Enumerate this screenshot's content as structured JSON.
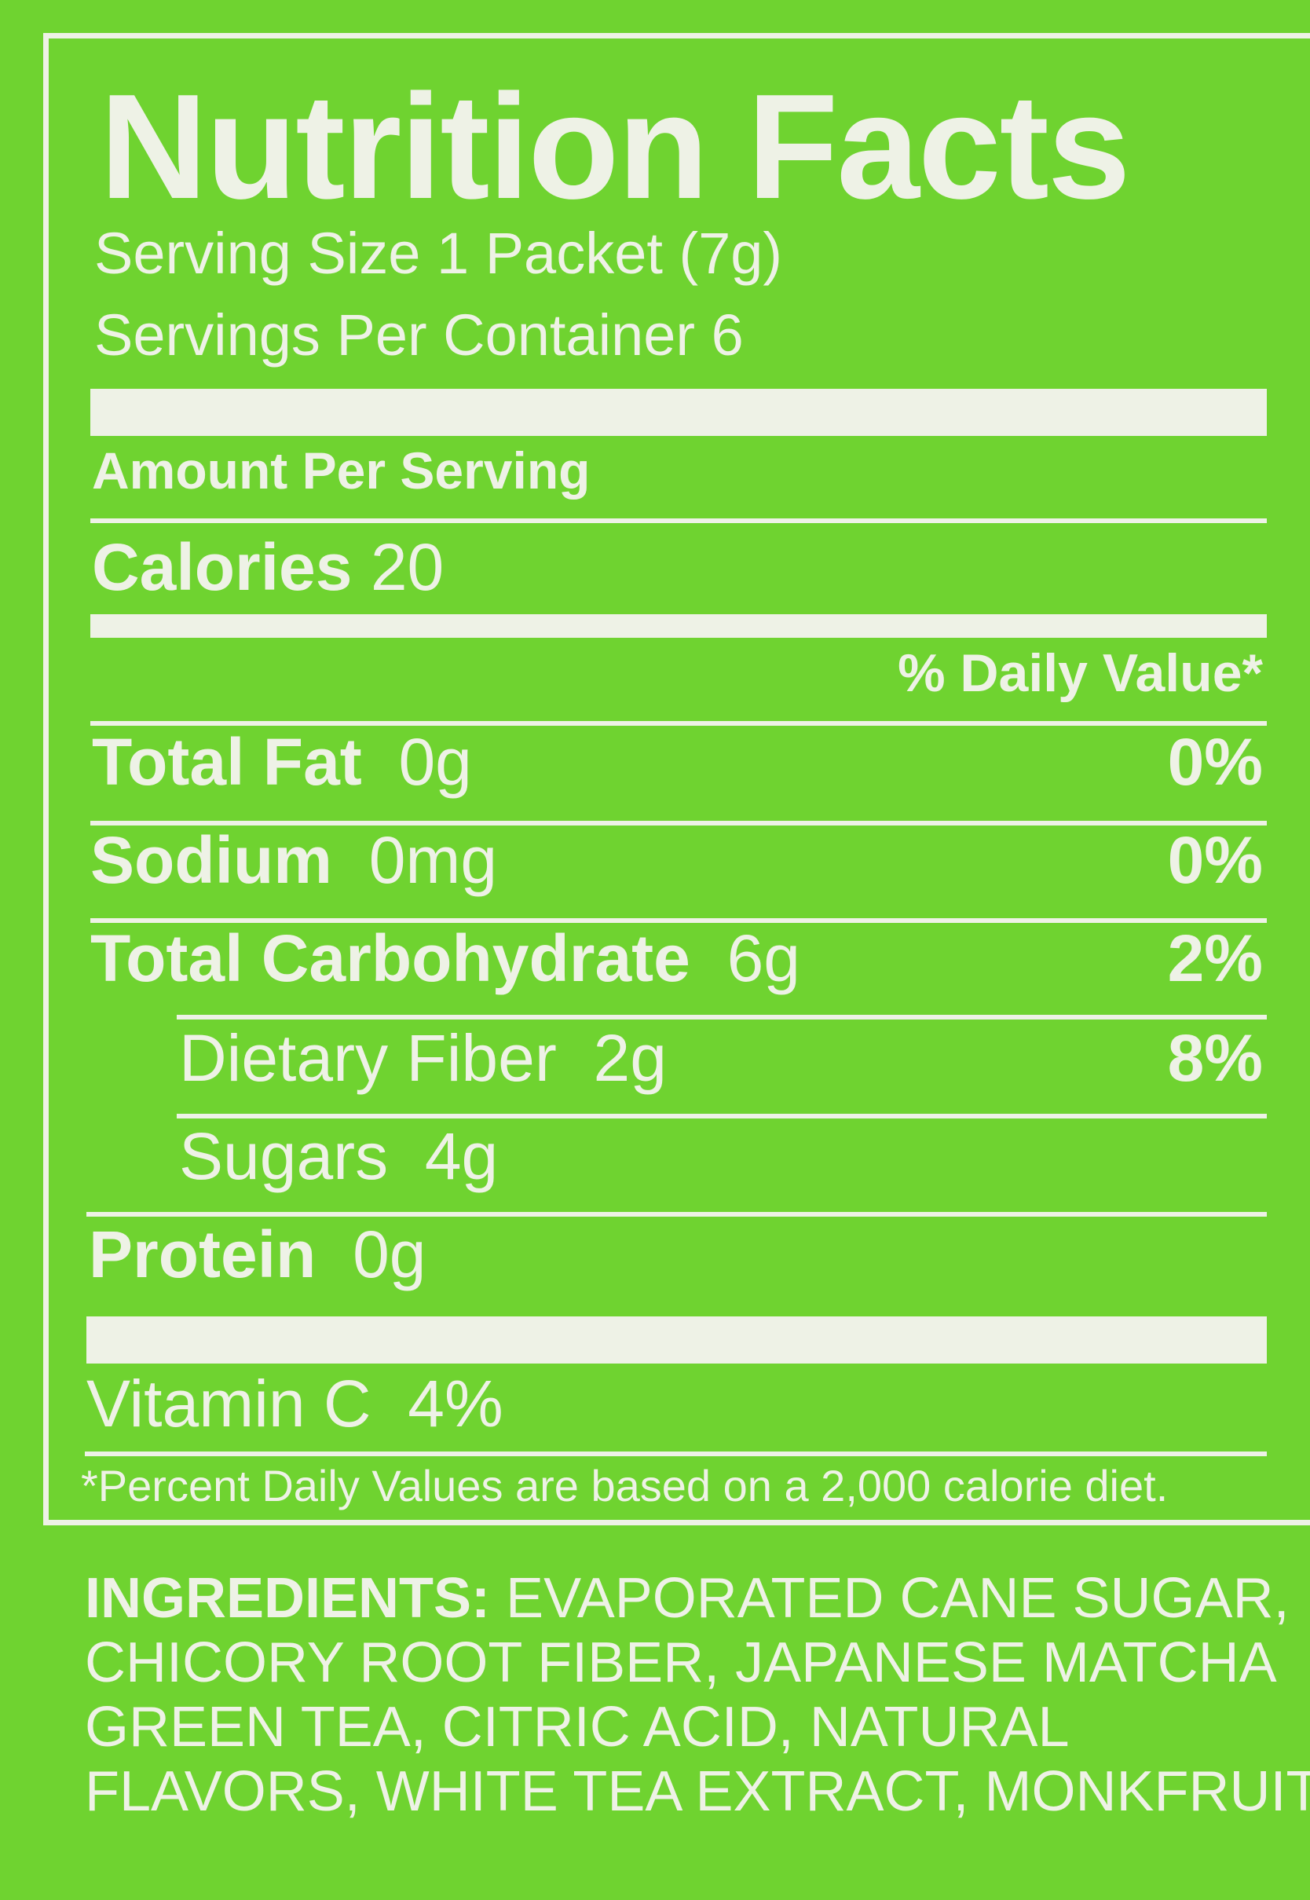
{
  "label": {
    "title": "Nutrition Facts",
    "serving_size": "Serving Size 1 Packet (7g)",
    "servings_per_container": "Servings Per Container 6",
    "amount_per_serving": "Amount Per Serving",
    "calories_label": "Calories",
    "calories_value": "20",
    "daily_value_header": "% Daily Value*",
    "nutrients": [
      {
        "name": "Total Fat",
        "amount": "0g",
        "dv": "0%"
      },
      {
        "name": "Sodium",
        "amount": "0mg",
        "dv": "0%"
      },
      {
        "name": "Total Carbohydrate",
        "amount": "6g",
        "dv": "2%"
      },
      {
        "name": "Dietary Fiber",
        "amount": "2g",
        "dv": "8%"
      },
      {
        "name": "Sugars",
        "amount": "4g",
        "dv": ""
      },
      {
        "name": "Protein",
        "amount": "0g",
        "dv": ""
      }
    ],
    "vitamin_c": "Vitamin C  4%",
    "footnote": "*Percent Daily Values are based on a 2,000 calorie diet."
  },
  "ingredients": {
    "label": "INGREDIENTS:",
    "text": "EVAPORATED CANE SUGAR, CHICORY ROOT FIBER, JAPANESE MATCHA GREEN TEA, CITRIC ACID, NATURAL FLAVORS, WHITE TEA EXTRACT, MONKFRUIT"
  },
  "colors": {
    "background": "#6fd330",
    "ink": "#eef2e6"
  }
}
